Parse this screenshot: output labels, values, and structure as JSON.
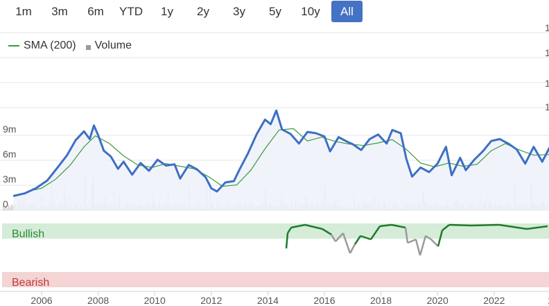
{
  "range_buttons": [
    "1m",
    "3m",
    "6m",
    "YTD",
    "1y",
    "2y",
    "3y",
    "5y",
    "10y",
    "All"
  ],
  "active_range": "All",
  "legend": {
    "sma": "SMA (200)",
    "volume": "Volume"
  },
  "signal_labels": {
    "bullish": "Bullish",
    "bearish": "Bearish"
  },
  "colors": {
    "price": "#3d6fc4",
    "sma": "#3a9b3a",
    "volume": "#c8c8c8",
    "bullish": "#d5ecd8",
    "bearish": "#f4d4d4",
    "signal_bull": "#1e7a2e",
    "signal_neutral": "#9a9a9a"
  },
  "chart_data": {
    "type": "line",
    "x_ticks": [
      "2006",
      "2008",
      "2010",
      "2012",
      "2014",
      "2016",
      "2018",
      "2020",
      "2022",
      "2"
    ],
    "y_ticks": [
      "0",
      "3m",
      "6m",
      "9m",
      "1",
      "1",
      "1",
      "1"
    ],
    "price": [
      [
        2005.0,
        2.2
      ],
      [
        2005.4,
        2.6
      ],
      [
        2005.8,
        3.4
      ],
      [
        2006.2,
        4.6
      ],
      [
        2006.6,
        6.8
      ],
      [
        2006.9,
        8.5
      ],
      [
        2007.2,
        10.8
      ],
      [
        2007.5,
        12.2
      ],
      [
        2007.7,
        11.0
      ],
      [
        2007.85,
        13.1
      ],
      [
        2008.0,
        11.6
      ],
      [
        2008.2,
        9.2
      ],
      [
        2008.45,
        8.3
      ],
      [
        2008.7,
        6.4
      ],
      [
        2008.9,
        7.5
      ],
      [
        2009.2,
        5.5
      ],
      [
        2009.5,
        7.3
      ],
      [
        2009.8,
        6.1
      ],
      [
        2010.1,
        7.8
      ],
      [
        2010.4,
        6.9
      ],
      [
        2010.7,
        7.1
      ],
      [
        2010.9,
        4.9
      ],
      [
        2011.2,
        7.0
      ],
      [
        2011.5,
        6.3
      ],
      [
        2011.8,
        5.1
      ],
      [
        2012.0,
        3.4
      ],
      [
        2012.2,
        2.9
      ],
      [
        2012.5,
        4.3
      ],
      [
        2012.8,
        4.5
      ],
      [
        2013.0,
        6.3
      ],
      [
        2013.3,
        8.8
      ],
      [
        2013.6,
        11.7
      ],
      [
        2013.9,
        14.0
      ],
      [
        2014.1,
        13.3
      ],
      [
        2014.3,
        15.4
      ],
      [
        2014.5,
        12.5
      ],
      [
        2014.8,
        11.8
      ],
      [
        2015.1,
        10.3
      ],
      [
        2015.4,
        12.1
      ],
      [
        2015.7,
        11.9
      ],
      [
        2016.0,
        11.4
      ],
      [
        2016.2,
        9.1
      ],
      [
        2016.5,
        11.3
      ],
      [
        2016.8,
        10.6
      ],
      [
        2017.0,
        10.2
      ],
      [
        2017.3,
        9.3
      ],
      [
        2017.6,
        11.0
      ],
      [
        2017.9,
        11.7
      ],
      [
        2018.2,
        10.3
      ],
      [
        2018.4,
        12.4
      ],
      [
        2018.7,
        11.9
      ],
      [
        2018.9,
        7.9
      ],
      [
        2019.1,
        5.2
      ],
      [
        2019.4,
        6.6
      ],
      [
        2019.7,
        5.9
      ],
      [
        2020.0,
        7.2
      ],
      [
        2020.3,
        9.8
      ],
      [
        2020.5,
        5.4
      ],
      [
        2020.8,
        8.1
      ],
      [
        2021.0,
        6.2
      ],
      [
        2021.3,
        7.8
      ],
      [
        2021.6,
        9.1
      ],
      [
        2021.9,
        10.7
      ],
      [
        2022.2,
        11.0
      ],
      [
        2022.5,
        10.3
      ],
      [
        2022.8,
        9.4
      ],
      [
        2023.1,
        7.2
      ],
      [
        2023.4,
        9.8
      ],
      [
        2023.7,
        7.5
      ],
      [
        2024.0,
        10.0
      ],
      [
        2024.2,
        8.7
      ]
    ],
    "sma": [
      [
        2005.5,
        2.9
      ],
      [
        2006.0,
        3.4
      ],
      [
        2006.5,
        4.8
      ],
      [
        2007.0,
        6.9
      ],
      [
        2007.5,
        9.8
      ],
      [
        2007.9,
        11.5
      ],
      [
        2008.4,
        10.3
      ],
      [
        2008.9,
        8.4
      ],
      [
        2009.4,
        7.0
      ],
      [
        2009.9,
        6.6
      ],
      [
        2010.4,
        7.2
      ],
      [
        2010.9,
        6.8
      ],
      [
        2011.4,
        6.4
      ],
      [
        2011.9,
        5.2
      ],
      [
        2012.4,
        3.7
      ],
      [
        2012.9,
        3.9
      ],
      [
        2013.4,
        6.2
      ],
      [
        2013.9,
        9.5
      ],
      [
        2014.4,
        12.4
      ],
      [
        2014.9,
        12.6
      ],
      [
        2015.4,
        10.7
      ],
      [
        2015.9,
        11.3
      ],
      [
        2016.4,
        10.6
      ],
      [
        2016.9,
        10.2
      ],
      [
        2017.4,
        10.0
      ],
      [
        2017.9,
        10.4
      ],
      [
        2018.4,
        10.9
      ],
      [
        2018.9,
        9.4
      ],
      [
        2019.4,
        7.3
      ],
      [
        2019.9,
        6.7
      ],
      [
        2020.4,
        7.3
      ],
      [
        2020.9,
        6.8
      ],
      [
        2021.4,
        7.1
      ],
      [
        2021.9,
        9.2
      ],
      [
        2022.4,
        10.3
      ],
      [
        2022.9,
        9.3
      ],
      [
        2023.4,
        8.5
      ],
      [
        2023.9,
        8.6
      ],
      [
        2024.2,
        8.7
      ]
    ]
  }
}
